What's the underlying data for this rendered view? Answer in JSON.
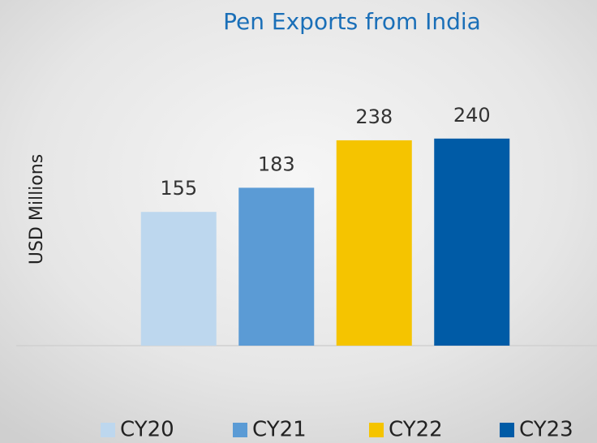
{
  "chart_data": {
    "type": "bar",
    "title": "Pen Exports from India",
    "y_label": "USD Millions",
    "categories": [
      "CY20",
      "CY21",
      "CY22",
      "CY23"
    ],
    "values": [
      155,
      183,
      238,
      240
    ],
    "colors": [
      "#bdd7ee",
      "#5b9bd5",
      "#f5c400",
      "#005ba6"
    ],
    "ylim": [
      0,
      300
    ],
    "legend": "bottom"
  }
}
